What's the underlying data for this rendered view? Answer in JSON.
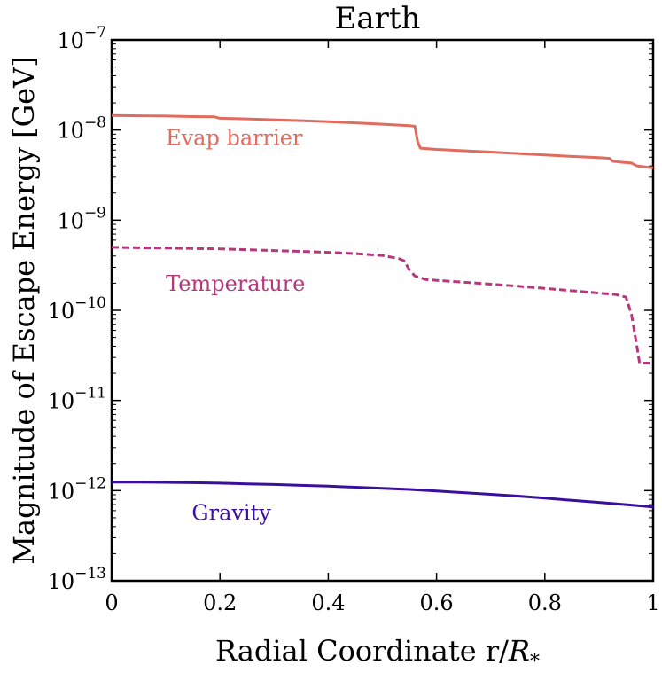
{
  "chart_data": {
    "type": "line",
    "title": "Earth",
    "xlabel": "Radial Coordinate r/R*",
    "xlabel_parts": {
      "main": "Radial Coordinate r/",
      "italic": "R",
      "sub": "*"
    },
    "ylabel": "Magnitude of Escape Energy [GeV]",
    "xlim": [
      0,
      1
    ],
    "ylim": [
      1e-13,
      1e-07
    ],
    "yscale": "log",
    "grid": false,
    "legend": "inline labels",
    "x_ticks": [
      {
        "value": 0,
        "label": "0"
      },
      {
        "value": 0.2,
        "label": "0.2"
      },
      {
        "value": 0.4,
        "label": "0.4"
      },
      {
        "value": 0.6,
        "label": "0.6"
      },
      {
        "value": 0.8,
        "label": "0.8"
      },
      {
        "value": 1,
        "label": "1"
      }
    ],
    "y_ticks": [
      {
        "value": 1e-07,
        "base": "10",
        "exp": "−7"
      },
      {
        "value": 1e-08,
        "base": "10",
        "exp": "−8"
      },
      {
        "value": 1e-09,
        "base": "10",
        "exp": "−9"
      },
      {
        "value": 1e-10,
        "base": "10",
        "exp": "−10"
      },
      {
        "value": 1e-11,
        "base": "10",
        "exp": "−11"
      },
      {
        "value": 1e-12,
        "base": "10",
        "exp": "−12"
      },
      {
        "value": 1e-13,
        "base": "10",
        "exp": "−13"
      }
    ],
    "series": [
      {
        "name": "Evap barrier",
        "color": "#e06c5f",
        "style": "solid",
        "label_at": [
          0.1,
          6.8e-09
        ],
        "x": [
          0,
          0.05,
          0.1,
          0.15,
          0.19,
          0.2,
          0.25,
          0.3,
          0.35,
          0.4,
          0.45,
          0.5,
          0.55,
          0.56,
          0.565,
          0.57,
          0.6,
          0.65,
          0.7,
          0.75,
          0.8,
          0.85,
          0.9,
          0.92,
          0.925,
          0.94,
          0.96,
          0.97,
          1.0
        ],
        "y": [
          1.45e-08,
          1.44e-08,
          1.43e-08,
          1.41e-08,
          1.4e-08,
          1.35e-08,
          1.33e-08,
          1.3e-08,
          1.27e-08,
          1.24e-08,
          1.2e-08,
          1.16e-08,
          1.12e-08,
          1.1e-08,
          7.5e-09,
          6.3e-09,
          6.1e-09,
          5.9e-09,
          5.7e-09,
          5.5e-09,
          5.3e-09,
          5.1e-09,
          4.95e-09,
          4.85e-09,
          4.5e-09,
          4.4e-09,
          4.3e-09,
          4e-09,
          3.8e-09
        ]
      },
      {
        "name": "Temperature",
        "color": "#b5377e",
        "style": "dashed",
        "label_at": [
          0.1,
          1.65e-10
        ],
        "x": [
          0,
          0.05,
          0.1,
          0.15,
          0.2,
          0.25,
          0.3,
          0.35,
          0.4,
          0.45,
          0.5,
          0.53,
          0.54,
          0.55,
          0.56,
          0.58,
          0.6,
          0.65,
          0.7,
          0.75,
          0.8,
          0.85,
          0.9,
          0.93,
          0.95,
          0.96,
          0.97,
          0.975,
          1.0
        ],
        "y": [
          5e-10,
          4.95e-10,
          4.9e-10,
          4.85e-10,
          4.8e-10,
          4.7e-10,
          4.6e-10,
          4.5e-10,
          4.4e-10,
          4.25e-10,
          4.05e-10,
          3.75e-10,
          3.55e-10,
          2.8e-10,
          2.4e-10,
          2.2e-10,
          2.15e-10,
          2.05e-10,
          1.95e-10,
          1.85e-10,
          1.75e-10,
          1.65e-10,
          1.55e-10,
          1.5e-10,
          1.4e-10,
          9e-11,
          4e-11,
          2.6e-11,
          2.6e-11
        ]
      },
      {
        "name": "Gravity",
        "color": "#3b0f9e",
        "style": "solid",
        "label_at": [
          0.148,
          4.7e-13
        ],
        "x": [
          0,
          0.05,
          0.1,
          0.15,
          0.2,
          0.25,
          0.3,
          0.35,
          0.4,
          0.45,
          0.5,
          0.55,
          0.6,
          0.65,
          0.7,
          0.75,
          0.8,
          0.85,
          0.9,
          0.95,
          1.0
        ],
        "y": [
          1.24e-12,
          1.24e-12,
          1.235e-12,
          1.225e-12,
          1.21e-12,
          1.19e-12,
          1.17e-12,
          1.145e-12,
          1.12e-12,
          1.09e-12,
          1.06e-12,
          1.03e-12,
          9.9e-13,
          9.5e-13,
          9.1e-13,
          8.7e-13,
          8.25e-13,
          7.8e-13,
          7.4e-13,
          7e-13,
          6.6e-13
        ]
      }
    ]
  }
}
